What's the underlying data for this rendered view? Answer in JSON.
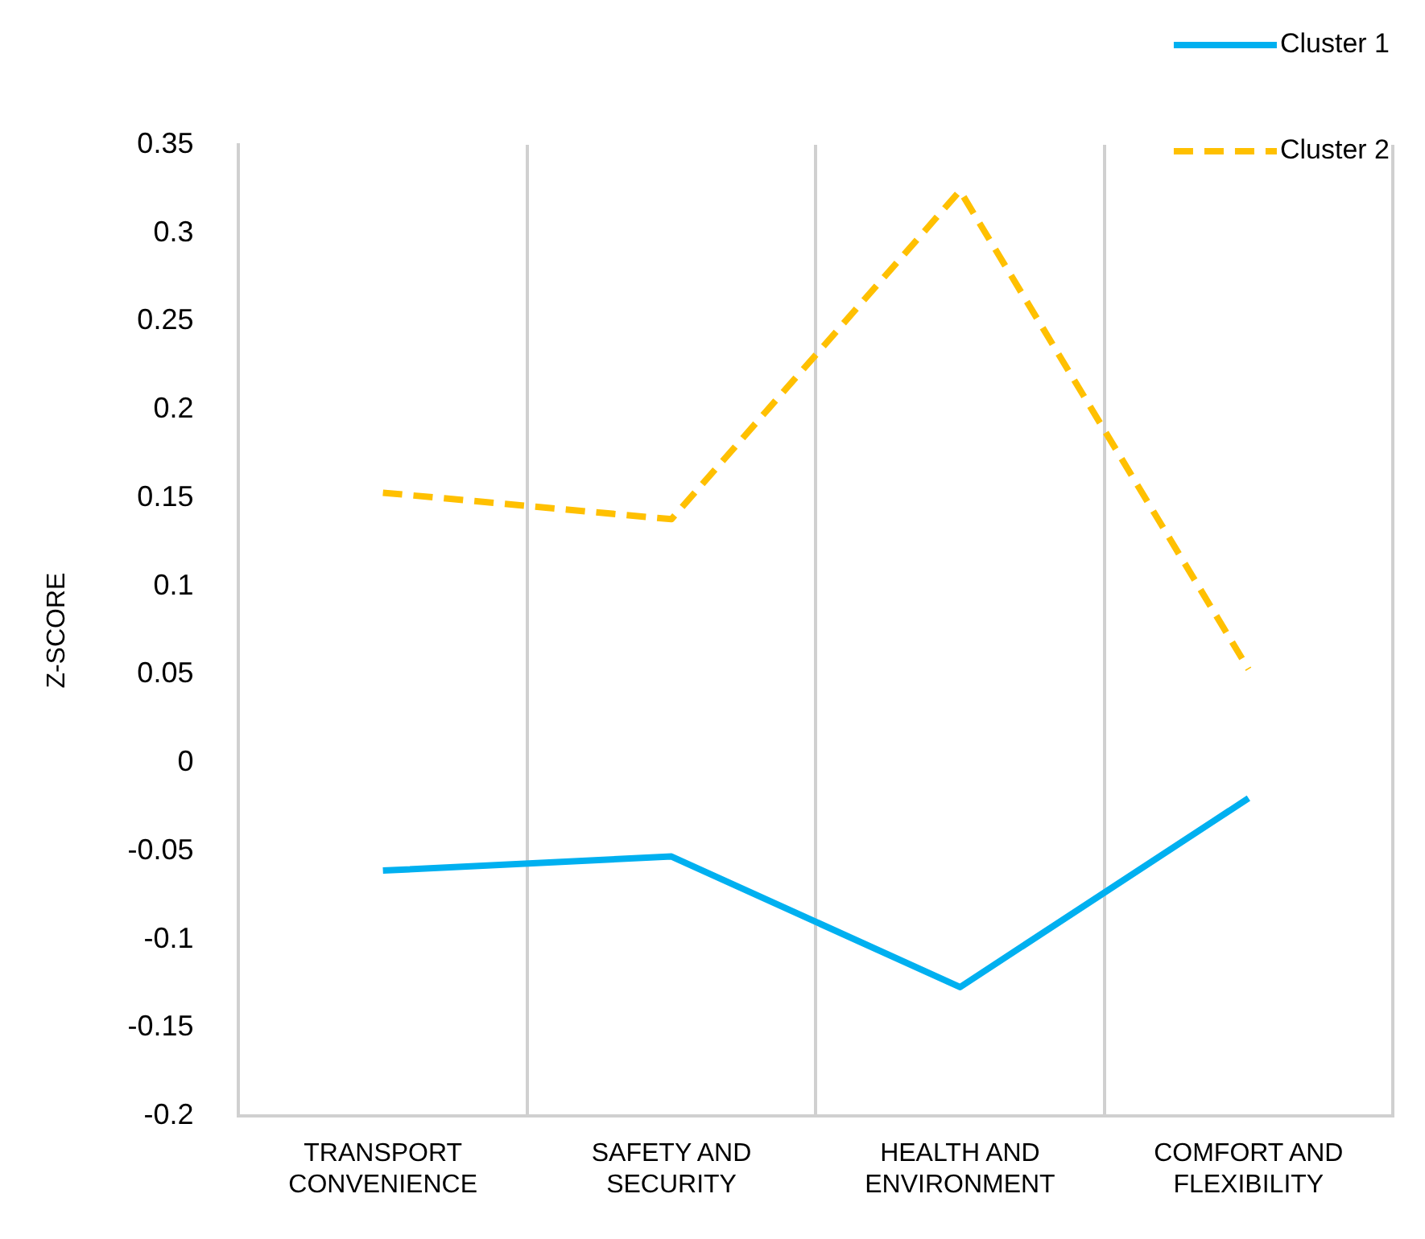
{
  "chart_data": {
    "type": "line",
    "ylabel": "Z-SCORE",
    "categories": [
      "TRANSPORT CONVENIENCE",
      "SAFETY AND SECURITY",
      "HEALTH AND ENVIRONMENT",
      "COMFORT AND FLEXIBILITY"
    ],
    "series": [
      {
        "name": "Cluster 1",
        "color": "#00b0f0",
        "values": [
          -0.061,
          -0.053,
          -0.127,
          -0.02
        ],
        "line_style": "solid"
      },
      {
        "name": "Cluster 2",
        "color": "#ffc000",
        "values": [
          0.153,
          0.138,
          0.324,
          0.053
        ],
        "line_style": "dashed"
      }
    ],
    "ylim": [
      -0.2,
      0.35
    ],
    "yticks": [
      -0.2,
      -0.15,
      -0.1,
      -0.05,
      0,
      0.05,
      0.1,
      0.15,
      0.2,
      0.25,
      0.3,
      0.35
    ],
    "grid": "x",
    "legend": "top right",
    "marker": "none"
  }
}
